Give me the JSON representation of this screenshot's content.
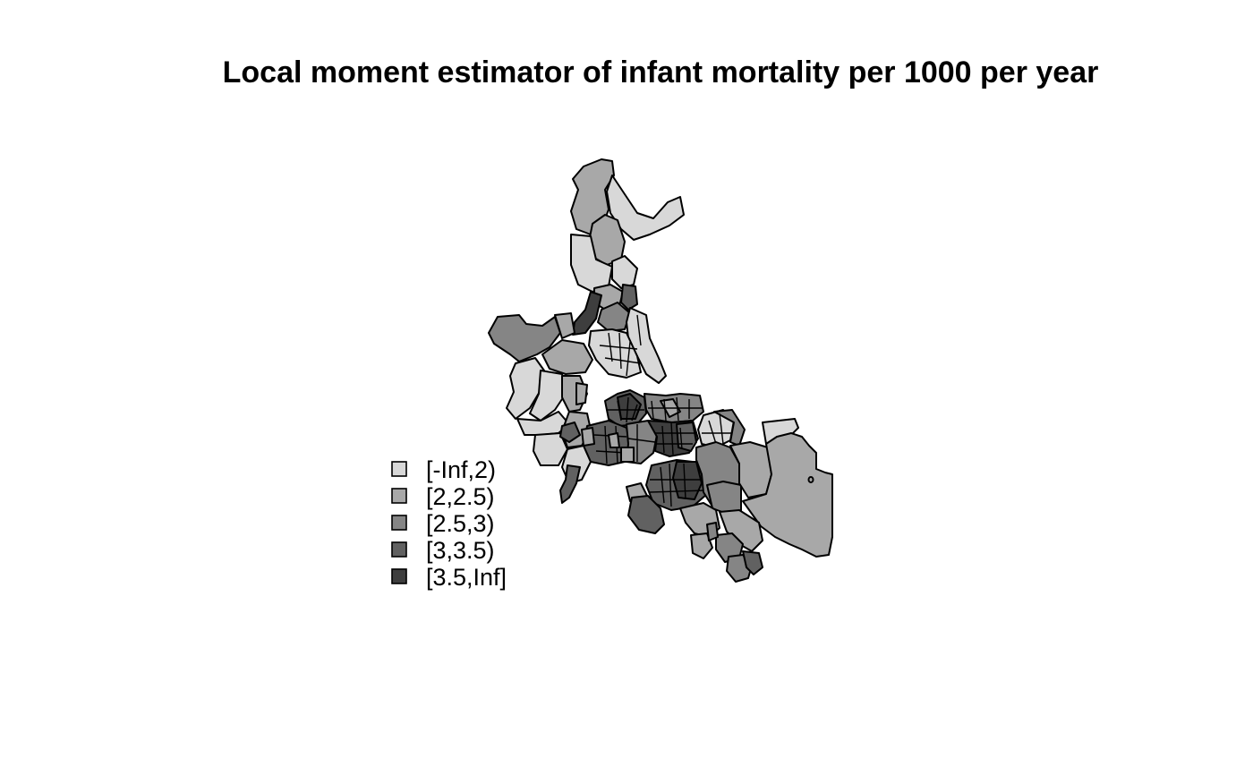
{
  "title": "Local moment estimator of infant mortality per 1000 per year",
  "legend": {
    "position": "bottom-left",
    "classes": [
      {
        "label": "[-Inf,2)",
        "color": "#d8d8d8"
      },
      {
        "label": "[2,2.5)",
        "color": "#a8a8a8"
      },
      {
        "label": "[2.5,3)",
        "color": "#858585"
      },
      {
        "label": "[3,3.5)",
        "color": "#616161"
      },
      {
        "label": "[3.5,Inf]",
        "color": "#3e3e3e"
      }
    ]
  },
  "map": {
    "type": "choropleth",
    "variable": "infant mortality per 1000 per year",
    "estimator": "Local moment estimator"
  }
}
